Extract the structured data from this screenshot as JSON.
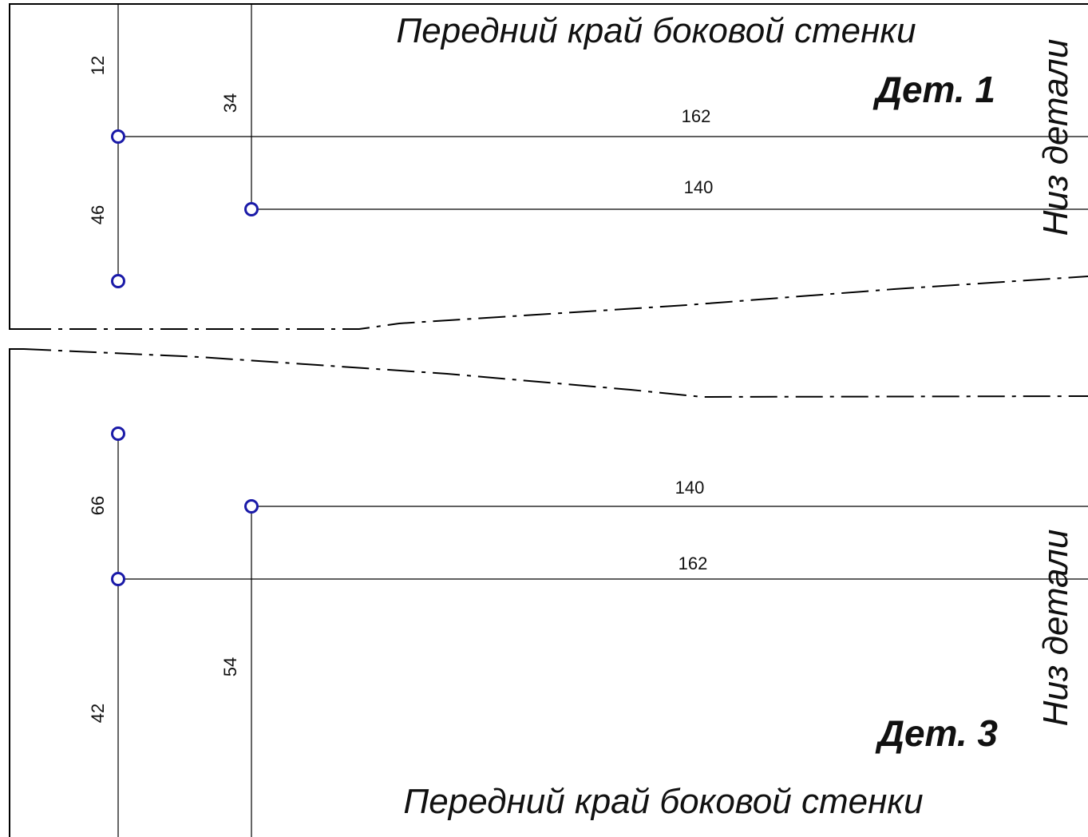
{
  "top_part": {
    "edge_label": "Передний край боковой стенки",
    "part_label": "Дет. 1",
    "side_label": "Низ детали",
    "dimensions": {
      "left_offset": "12",
      "hole_spacing": "46",
      "right_offset": "34",
      "long_line": "162",
      "short_line": "140"
    }
  },
  "bottom_part": {
    "edge_label": "Передний край боковой стенки",
    "part_label": "Дет. 3",
    "side_label": "Низ детали",
    "dimensions": {
      "hole_spacing": "66",
      "left_offset": "42",
      "right_offset": "54",
      "long_line": "162",
      "short_line": "140"
    }
  },
  "colors": {
    "line": "#000000",
    "hole": "#1a1aa8"
  }
}
